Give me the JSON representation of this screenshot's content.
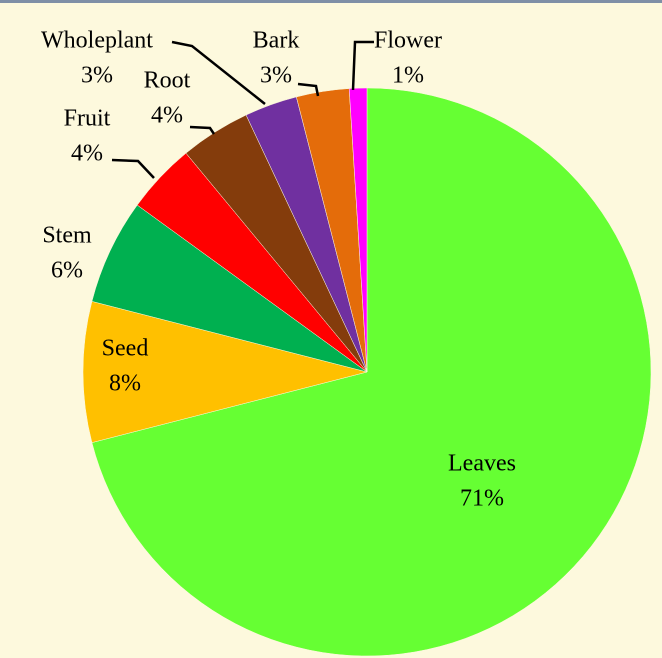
{
  "chart_data": {
    "type": "pie",
    "categories": [
      "Leaves",
      "Seed",
      "Stem",
      "Fruit",
      "Root",
      "Wholeplant",
      "Bark",
      "Flower"
    ],
    "values": [
      71,
      8,
      6,
      4,
      4,
      3,
      3,
      1
    ],
    "value_labels": [
      "71%",
      "8%",
      "6%",
      "4%",
      "4%",
      "3%",
      "3%",
      "1%"
    ],
    "colors": [
      "#66ff33",
      "#ffc000",
      "#00b050",
      "#ff0000",
      "#843c0c",
      "#7030a0",
      "#e46c0a",
      "#ff00ff"
    ]
  }
}
